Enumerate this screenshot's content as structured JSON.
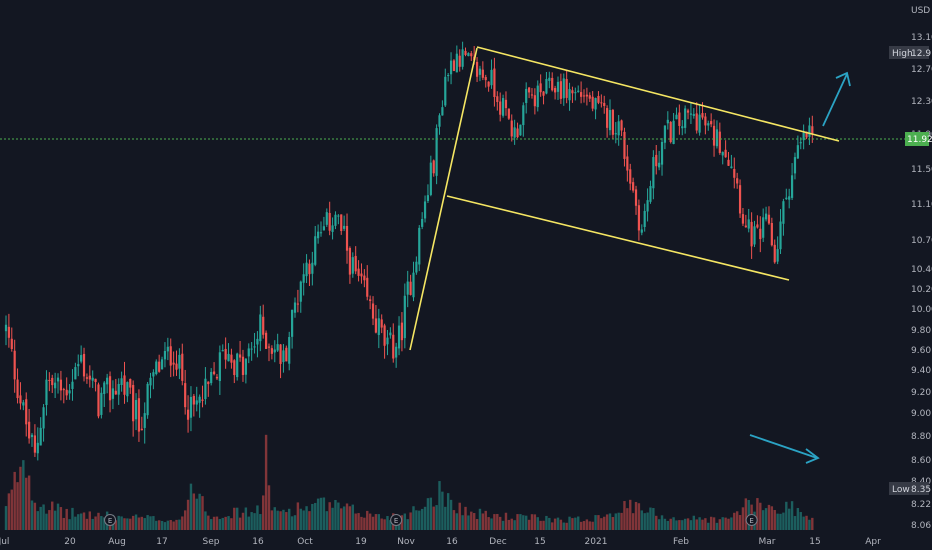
{
  "chart_data": {
    "type": "candlestick",
    "currency": "USD",
    "x_tick_labels": [
      "Jul",
      "20",
      "Aug",
      "17",
      "Sep",
      "16",
      "Oct",
      "19",
      "Nov",
      "16",
      "Dec",
      "15",
      "2021",
      "Feb",
      "Mar",
      "15",
      "Apr"
    ],
    "y_tick_labels": [
      "13.10",
      "12.70",
      "12.30",
      "11.90",
      "11.50",
      "11.10",
      "10.70",
      "10.40",
      "10.20",
      "10.00",
      "9.80",
      "9.60",
      "9.40",
      "9.20",
      "9.00",
      "8.80",
      "8.60",
      "8.40",
      "8.22",
      "8.06"
    ],
    "ylim": [
      8.0,
      13.3
    ],
    "high": {
      "label": "High",
      "value": "12.91"
    },
    "low": {
      "label": "Low",
      "value": "8.35"
    },
    "last_price": "11.92",
    "earnings_marker": "E",
    "colors": {
      "up": "#26a69a",
      "down": "#ef5350",
      "trendline": "#f5e663",
      "arrow": "#2ba3c4",
      "last_price": "#4caf50"
    },
    "price_anchors": [
      [
        0,
        9.8
      ],
      [
        6,
        9.0
      ],
      [
        10,
        8.6
      ],
      [
        14,
        9.3
      ],
      [
        20,
        9.2
      ],
      [
        26,
        9.5
      ],
      [
        32,
        9.1
      ],
      [
        40,
        9.3
      ],
      [
        46,
        8.9
      ],
      [
        52,
        9.4
      ],
      [
        58,
        9.6
      ],
      [
        64,
        9.0
      ],
      [
        70,
        9.2
      ],
      [
        76,
        9.6
      ],
      [
        82,
        9.4
      ],
      [
        88,
        9.8
      ],
      [
        96,
        9.5
      ],
      [
        102,
        10.3
      ],
      [
        108,
        10.7
      ],
      [
        114,
        11.0
      ],
      [
        120,
        10.4
      ],
      [
        126,
        10.0
      ],
      [
        132,
        9.6
      ],
      [
        136,
        9.7
      ],
      [
        142,
        10.6
      ],
      [
        148,
        11.6
      ],
      [
        152,
        12.6
      ],
      [
        156,
        12.9
      ],
      [
        162,
        12.7
      ],
      [
        168,
        12.55
      ],
      [
        172,
        12.2
      ],
      [
        176,
        11.9
      ],
      [
        180,
        12.3
      ],
      [
        186,
        12.4
      ],
      [
        190,
        12.5
      ],
      [
        196,
        12.4
      ],
      [
        200,
        12.4
      ],
      [
        204,
        12.2
      ],
      [
        208,
        12.1
      ],
      [
        212,
        12.0
      ],
      [
        216,
        11.4
      ],
      [
        220,
        10.8
      ],
      [
        224,
        11.5
      ],
      [
        228,
        11.9
      ],
      [
        232,
        12.0
      ],
      [
        236,
        12.1
      ],
      [
        240,
        12.1
      ],
      [
        244,
        11.9
      ],
      [
        248,
        11.8
      ],
      [
        252,
        11.5
      ],
      [
        256,
        10.8
      ],
      [
        260,
        10.7
      ],
      [
        264,
        10.9
      ],
      [
        266,
        10.5
      ],
      [
        270,
        11.2
      ],
      [
        274,
        11.7
      ],
      [
        278,
        11.92
      ]
    ],
    "volume_profile": [
      [
        0,
        0.25
      ],
      [
        3,
        0.55
      ],
      [
        6,
        0.9
      ],
      [
        10,
        0.35
      ],
      [
        20,
        0.2
      ],
      [
        40,
        0.15
      ],
      [
        60,
        0.12
      ],
      [
        66,
        0.55
      ],
      [
        70,
        0.18
      ],
      [
        88,
        0.22
      ],
      [
        90,
        0.95
      ],
      [
        92,
        0.2
      ],
      [
        100,
        0.25
      ],
      [
        110,
        0.3
      ],
      [
        130,
        0.15
      ],
      [
        140,
        0.2
      ],
      [
        150,
        0.45
      ],
      [
        160,
        0.2
      ],
      [
        175,
        0.15
      ],
      [
        200,
        0.12
      ],
      [
        216,
        0.28
      ],
      [
        230,
        0.14
      ],
      [
        250,
        0.12
      ],
      [
        256,
        0.3
      ],
      [
        266,
        0.25
      ],
      [
        272,
        0.28
      ],
      [
        278,
        0.12
      ]
    ],
    "earnings_at": [
      36,
      135,
      258
    ]
  }
}
